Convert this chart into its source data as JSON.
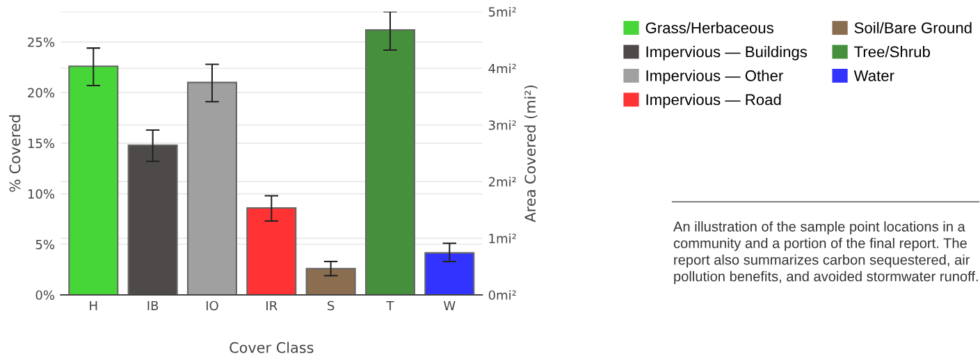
{
  "chart_data": {
    "type": "bar",
    "xlabel": "Cover Class",
    "ylabel": "% Covered",
    "y2label": "Area Covered (mi²)",
    "categories": [
      "H",
      "IB",
      "IO",
      "IR",
      "S",
      "T",
      "W"
    ],
    "series": [
      {
        "name": "Grass/Herbaceous",
        "color": "#47d637",
        "values": [
          22.6,
          null,
          null,
          null,
          null,
          null,
          null
        ],
        "errors": [
          [
            20.7,
            24.4
          ],
          null,
          null,
          null,
          null,
          null,
          null
        ]
      },
      {
        "name": "Impervious — Buildings",
        "color": "#4f4a4a",
        "values": [
          null,
          14.8,
          null,
          null,
          null,
          null,
          null
        ],
        "errors": [
          null,
          [
            13.2,
            16.3
          ],
          null,
          null,
          null,
          null,
          null
        ]
      },
      {
        "name": "Impervious — Other",
        "color": "#a0a0a0",
        "values": [
          null,
          null,
          21.0,
          null,
          null,
          null,
          null
        ],
        "errors": [
          null,
          null,
          [
            19.1,
            22.8
          ],
          null,
          null,
          null,
          null
        ]
      },
      {
        "name": "Impervious — Road",
        "color": "#ff3333",
        "values": [
          null,
          null,
          null,
          8.6,
          null,
          null,
          null
        ],
        "errors": [
          null,
          null,
          null,
          [
            7.3,
            9.8
          ],
          null,
          null,
          null
        ]
      },
      {
        "name": "Soil/Bare Ground",
        "color": "#8b6d50",
        "values": [
          null,
          null,
          null,
          null,
          2.6,
          null,
          null
        ],
        "errors": [
          null,
          null,
          null,
          null,
          [
            1.9,
            3.3
          ],
          null,
          null
        ]
      },
      {
        "name": "Tree/Shrub",
        "color": "#458f3d",
        "values": [
          null,
          null,
          null,
          null,
          null,
          26.2,
          null
        ],
        "errors": [
          null,
          null,
          null,
          null,
          null,
          [
            24.2,
            28.0
          ],
          null
        ]
      },
      {
        "name": "Water",
        "color": "#3333ff",
        "values": [
          null,
          null,
          null,
          null,
          null,
          null,
          4.15
        ],
        "errors": [
          null,
          null,
          null,
          null,
          null,
          null,
          [
            3.3,
            5.1
          ]
        ]
      }
    ],
    "ylim": [
      0,
      28
    ],
    "yticks": [
      {
        "value": 0,
        "label": "0%"
      },
      {
        "value": 5,
        "label": "5%"
      },
      {
        "value": 10,
        "label": "10%"
      },
      {
        "value": 15,
        "label": "15%"
      },
      {
        "value": 20,
        "label": "20%"
      },
      {
        "value": 25,
        "label": "25%"
      }
    ],
    "y2lim": [
      0,
      5
    ],
    "y2ticks": [
      {
        "value": 0,
        "label": "0mi²"
      },
      {
        "value": 1,
        "label": "1mi²"
      },
      {
        "value": 2,
        "label": "2mi²"
      },
      {
        "value": 3,
        "label": "3mi²"
      },
      {
        "value": 4,
        "label": "4mi²"
      },
      {
        "value": 5,
        "label": "5mi²"
      }
    ],
    "grid": "y",
    "legend": "right",
    "annotations": [
      "An illustration of the sample point locations in a community and a portion of the final report. The report also summarizes carbon sequestered, air pollution benefits, and avoided stormwater runoff."
    ]
  }
}
